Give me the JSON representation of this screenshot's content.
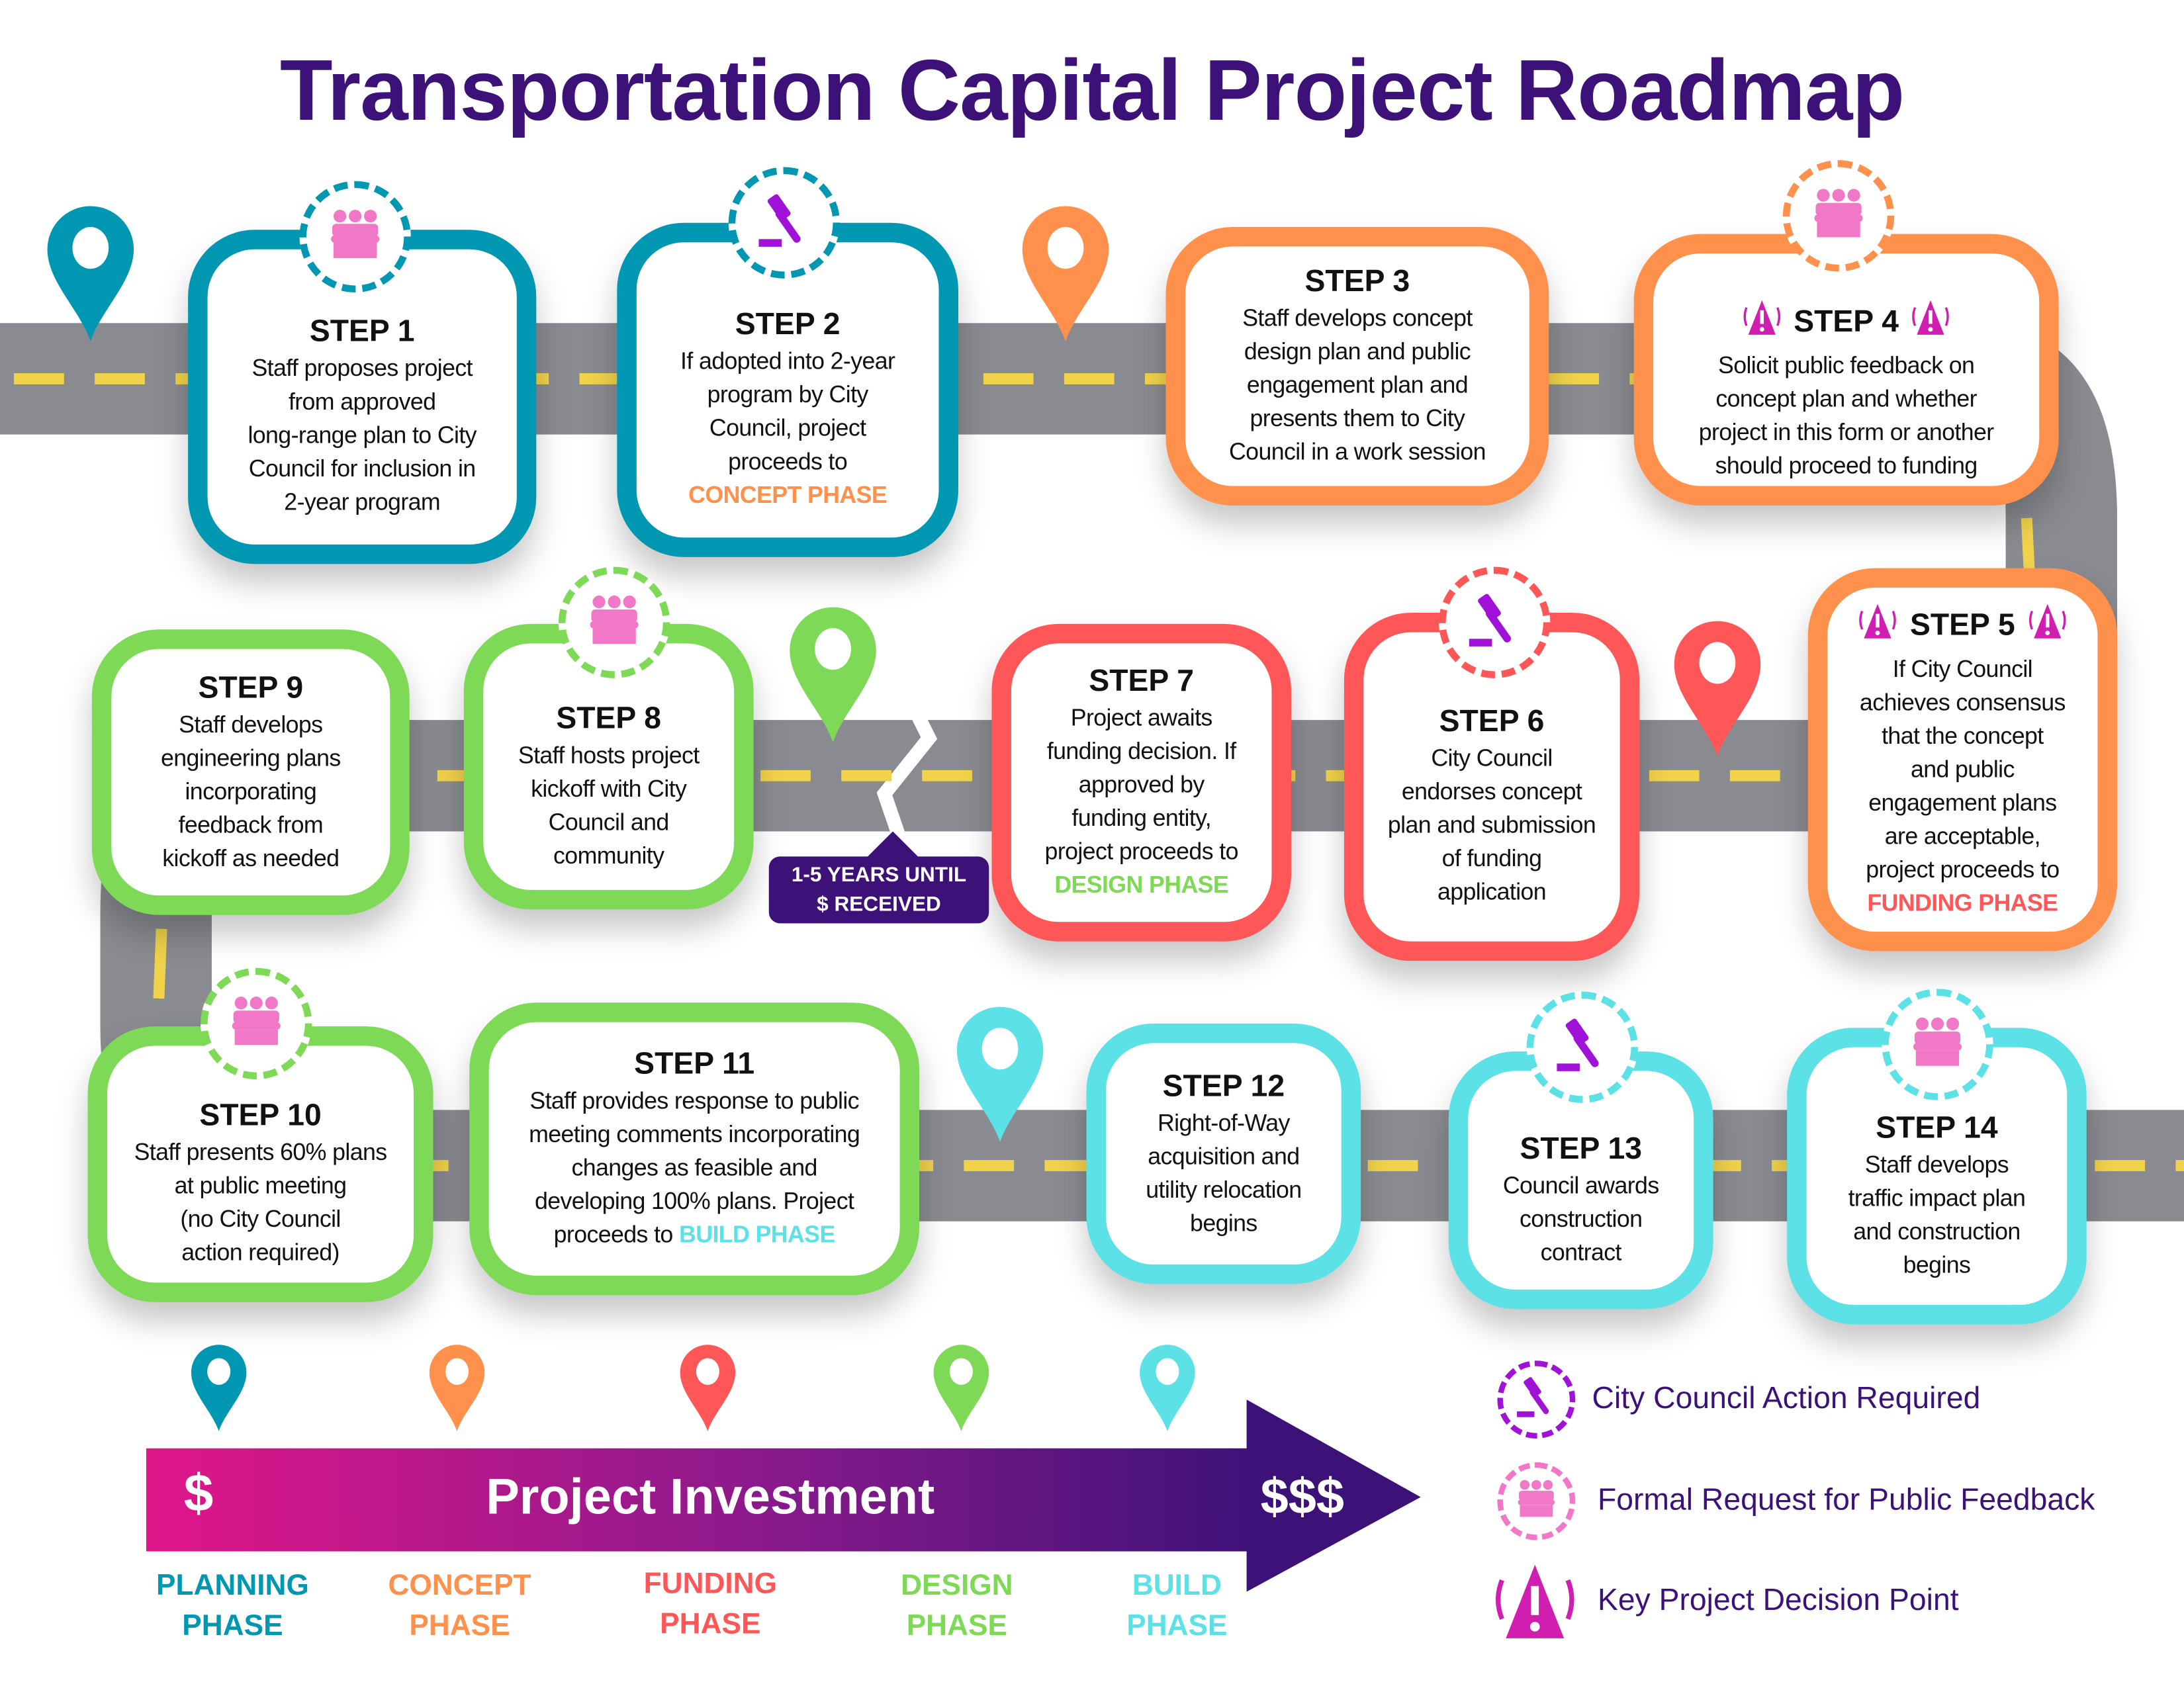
{
  "title": "Transportation Capital Project Roadmap",
  "colors": {
    "planning": "#0097b2",
    "concept": "#ff914d",
    "funding": "#ff5757",
    "design": "#7ed957",
    "build": "#5ce1e6",
    "title": "#3d1278",
    "people_icon": "#f178c6",
    "gavel_icon": "#a012d8",
    "warning_icon": "#d01fb0",
    "road": "#898b90",
    "road_line": "#f0d24b"
  },
  "steps": [
    {
      "label": "STEP 1",
      "color": "planning",
      "lines": [
        "Staff proposes project",
        "from approved",
        "long-range plan to City",
        "Council for inclusion in",
        "2-year program"
      ],
      "badge": "people-icon",
      "warning": false
    },
    {
      "label": "STEP 2",
      "color": "planning",
      "lines": [
        "If adopted into 2-year",
        "program by City",
        "Council, project",
        "proceeds to"
      ],
      "phase": "CONCEPT PHASE",
      "phase_color": "concept",
      "phase_inline": false,
      "badge": "gavel-icon",
      "warning": false
    },
    {
      "label": "STEP 3",
      "color": "concept",
      "lines": [
        "Staff develops concept",
        "design plan and public",
        "engagement plan and",
        "presents them to City",
        "Council in a work session"
      ],
      "warning": false
    },
    {
      "label": "STEP 4",
      "color": "concept",
      "lines": [
        "Solicit public feedback on",
        "concept plan and whether",
        "project in this form or another",
        "should proceed to funding"
      ],
      "badge": "people-icon",
      "warning": true
    },
    {
      "label": "STEP 5",
      "color": "concept",
      "lines": [
        "If City Council",
        "achieves consensus",
        "that the concept",
        "and public",
        "engagement plans",
        "are acceptable,",
        "project proceeds to"
      ],
      "phase": "FUNDING PHASE",
      "phase_color": "funding",
      "phase_inline": false,
      "warning": true
    },
    {
      "label": "STEP 6",
      "color": "funding",
      "lines": [
        "City Council",
        "endorses concept",
        "plan and submission",
        "of funding",
        "application"
      ],
      "badge": "gavel-icon",
      "warning": false
    },
    {
      "label": "STEP 7",
      "color": "funding",
      "lines": [
        "Project awaits",
        "funding decision. If",
        "approved by",
        "funding entity,",
        "project proceeds to"
      ],
      "phase": "DESIGN PHASE",
      "phase_color": "design",
      "phase_inline": false,
      "warning": false
    },
    {
      "label": "STEP 8",
      "color": "design",
      "lines": [
        "Staff hosts project",
        "kickoff with City",
        "Council and",
        "community"
      ],
      "badge": "people-icon",
      "warning": false
    },
    {
      "label": "STEP 9",
      "color": "design",
      "lines": [
        "Staff develops",
        "engineering plans",
        "incorporating",
        "feedback from",
        "kickoff as needed"
      ],
      "warning": false
    },
    {
      "label": "STEP 10",
      "color": "design",
      "lines": [
        "Staff presents 60% plans",
        "at public meeting",
        "(no City Council",
        "action required)"
      ],
      "badge": "people-icon",
      "warning": false
    },
    {
      "label": "STEP 11",
      "color": "design",
      "lines": [
        "Staff provides response to public",
        "meeting comments incorporating",
        "changes as feasible and",
        "developing 100% plans. Project",
        "proceeds to"
      ],
      "phase": "BUILD PHASE",
      "phase_color": "build",
      "phase_inline": true,
      "warning": false
    },
    {
      "label": "STEP 12",
      "color": "build",
      "lines": [
        "Right-of-Way",
        "acquisition and",
        "utility relocation",
        "begins"
      ],
      "warning": false
    },
    {
      "label": "STEP 13",
      "color": "build",
      "lines": [
        "Council awards",
        "construction",
        "contract"
      ],
      "badge": "gavel-icon",
      "warning": false
    },
    {
      "label": "STEP 14",
      "color": "build",
      "lines": [
        "Staff develops",
        "traffic impact plan",
        "and construction",
        "begins"
      ],
      "badge": "people-icon",
      "warning": false
    }
  ],
  "years_label": {
    "line1": "1-5 YEARS UNTIL",
    "line2": "$ RECEIVED"
  },
  "investment": {
    "label": "Project Investment",
    "low": "$",
    "high": "$$$"
  },
  "phases": [
    {
      "line1": "PLANNING",
      "line2": "PHASE",
      "color": "planning"
    },
    {
      "line1": "CONCEPT",
      "line2": "PHASE",
      "color": "concept"
    },
    {
      "line1": "FUNDING",
      "line2": "PHASE",
      "color": "funding"
    },
    {
      "line1": "DESIGN",
      "line2": "PHASE",
      "color": "design"
    },
    {
      "line1": "BUILD",
      "line2": "PHASE",
      "color": "build"
    }
  ],
  "legend": [
    {
      "icon": "gavel-icon",
      "label": "City Council Action Required"
    },
    {
      "icon": "people-icon",
      "label": "Formal Request for Public Feedback"
    },
    {
      "icon": "warning-icon",
      "label": "Key Project Decision Point"
    }
  ]
}
